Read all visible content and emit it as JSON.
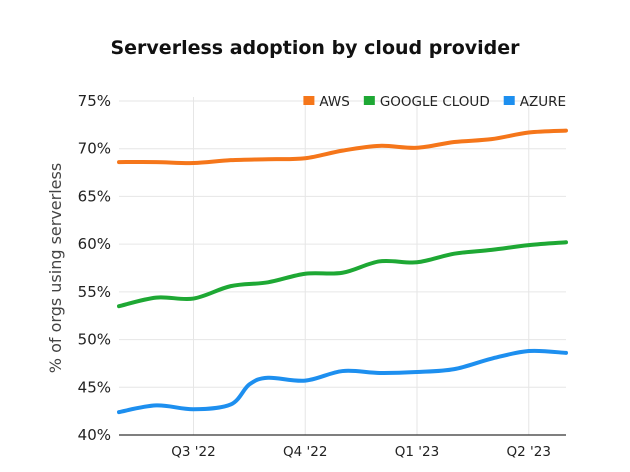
{
  "chart_data": {
    "type": "line",
    "title": "Serverless adoption by cloud provider",
    "xlabel": "",
    "ylabel": "% of orgs using serverless",
    "ylim": [
      40,
      75
    ],
    "yticks": [
      40,
      45,
      50,
      55,
      60,
      65,
      70,
      75
    ],
    "ytick_labels": [
      "40%",
      "45%",
      "50%",
      "55%",
      "60%",
      "65%",
      "70%",
      "75%"
    ],
    "xlim": [
      0,
      24
    ],
    "xticks": [
      {
        "x": 4,
        "label": "Q3 '22"
      },
      {
        "x": 10,
        "label": "Q4 '22"
      },
      {
        "x": 16,
        "label": "Q1 '23"
      },
      {
        "x": 22,
        "label": "Q2 '23"
      }
    ],
    "legend_position": "top-right",
    "series": [
      {
        "name": "AWS",
        "color": "#f5761a",
        "x": [
          0,
          2,
          4,
          6,
          8,
          10,
          12,
          14,
          16,
          18,
          20,
          22,
          24
        ],
        "y": [
          68.6,
          68.6,
          68.5,
          68.8,
          68.9,
          69.0,
          69.8,
          70.3,
          70.1,
          70.7,
          71.0,
          71.7,
          71.9
        ]
      },
      {
        "name": "GOOGLE CLOUD",
        "color": "#1ea834",
        "x": [
          0,
          2,
          4,
          6,
          8,
          10,
          12,
          14,
          16,
          18,
          20,
          22,
          24
        ],
        "y": [
          53.5,
          54.4,
          54.3,
          55.6,
          56.0,
          56.9,
          57.0,
          58.2,
          58.1,
          59.0,
          59.4,
          59.9,
          60.2
        ]
      },
      {
        "name": "AZURE",
        "color": "#1d8fef",
        "x": [
          0,
          2,
          4,
          6,
          7,
          8,
          10,
          12,
          14,
          16,
          18,
          20,
          22,
          24
        ],
        "y": [
          42.4,
          43.1,
          42.7,
          43.2,
          45.3,
          46.0,
          45.7,
          46.7,
          46.5,
          46.6,
          46.9,
          48.0,
          48.8,
          48.6
        ]
      }
    ]
  }
}
